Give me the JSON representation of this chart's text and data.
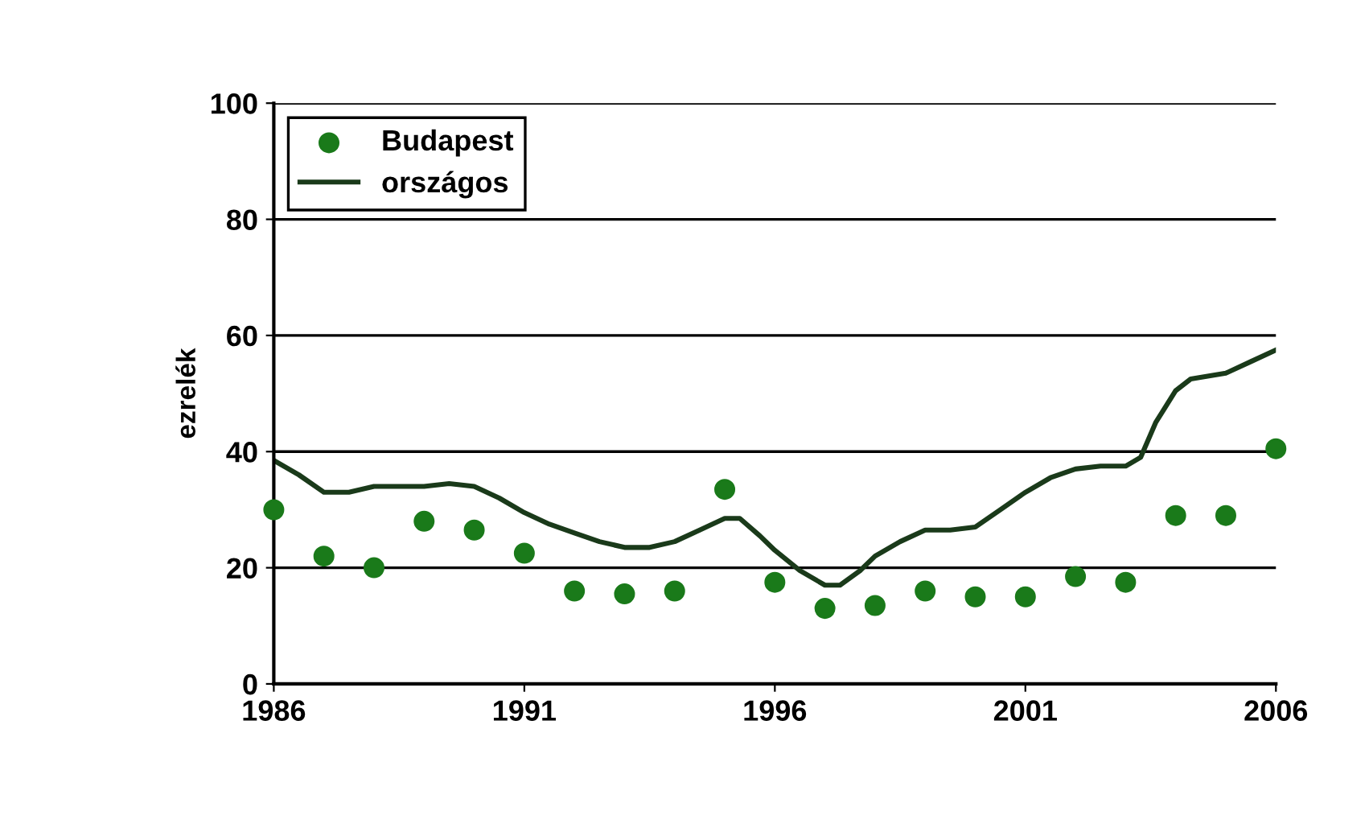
{
  "chart_data": {
    "type": "line",
    "ylabel": "ezrelék",
    "xlim": [
      1986,
      2006
    ],
    "xticks": [
      1986,
      1991,
      1996,
      2001,
      2006
    ],
    "ylim": [
      0,
      100
    ],
    "yticks": [
      0,
      20,
      40,
      60,
      80,
      100
    ],
    "grid": "y",
    "legend": "top left",
    "series": [
      {
        "name": "Budapest",
        "type": "scatter",
        "marker": "circle",
        "color": "#1a7a1a",
        "x": [
          1986,
          1987,
          1988,
          1989,
          1990,
          1991,
          1992,
          1993,
          1994,
          1995,
          1996,
          1997,
          1998,
          1999,
          2000,
          2001,
          2002,
          2003,
          2004,
          2005,
          2006
        ],
        "values": [
          30,
          22,
          20,
          28,
          26.5,
          22.5,
          16,
          15.5,
          16,
          33.5,
          17.5,
          13,
          13.5,
          16,
          15,
          15,
          18.5,
          17.5,
          29,
          29,
          40.5
        ]
      },
      {
        "name": "országos",
        "color": "#1a3a1a",
        "x": [
          1986,
          1986.5,
          1987,
          1987.5,
          1988,
          1989,
          1989.5,
          1990,
          1990.5,
          1991,
          1991.5,
          1992,
          1992.5,
          1993,
          1993.5,
          1994,
          1994.5,
          1995,
          1995.3,
          1995.7,
          1996,
          1996.5,
          1997,
          1997.3,
          1997.7,
          1998,
          1998.5,
          1999,
          1999.5,
          2000,
          2000.5,
          2001,
          2001.5,
          2002,
          2002.5,
          2003,
          2003.3,
          2003.6,
          2004,
          2004.3,
          2005,
          2005.5,
          2006
        ],
        "values": [
          38.5,
          36,
          33,
          33,
          34,
          34,
          34.5,
          34,
          32,
          29.5,
          27.5,
          26,
          24.5,
          23.5,
          23.5,
          24.5,
          26.5,
          28.5,
          28.5,
          25.5,
          23,
          19.5,
          17,
          17,
          19.5,
          22,
          24.5,
          26.5,
          26.5,
          27,
          30,
          33,
          35.5,
          37,
          37.5,
          37.5,
          39,
          45,
          50.5,
          52.5,
          53.5,
          55.5,
          57.5
        ]
      }
    ]
  }
}
